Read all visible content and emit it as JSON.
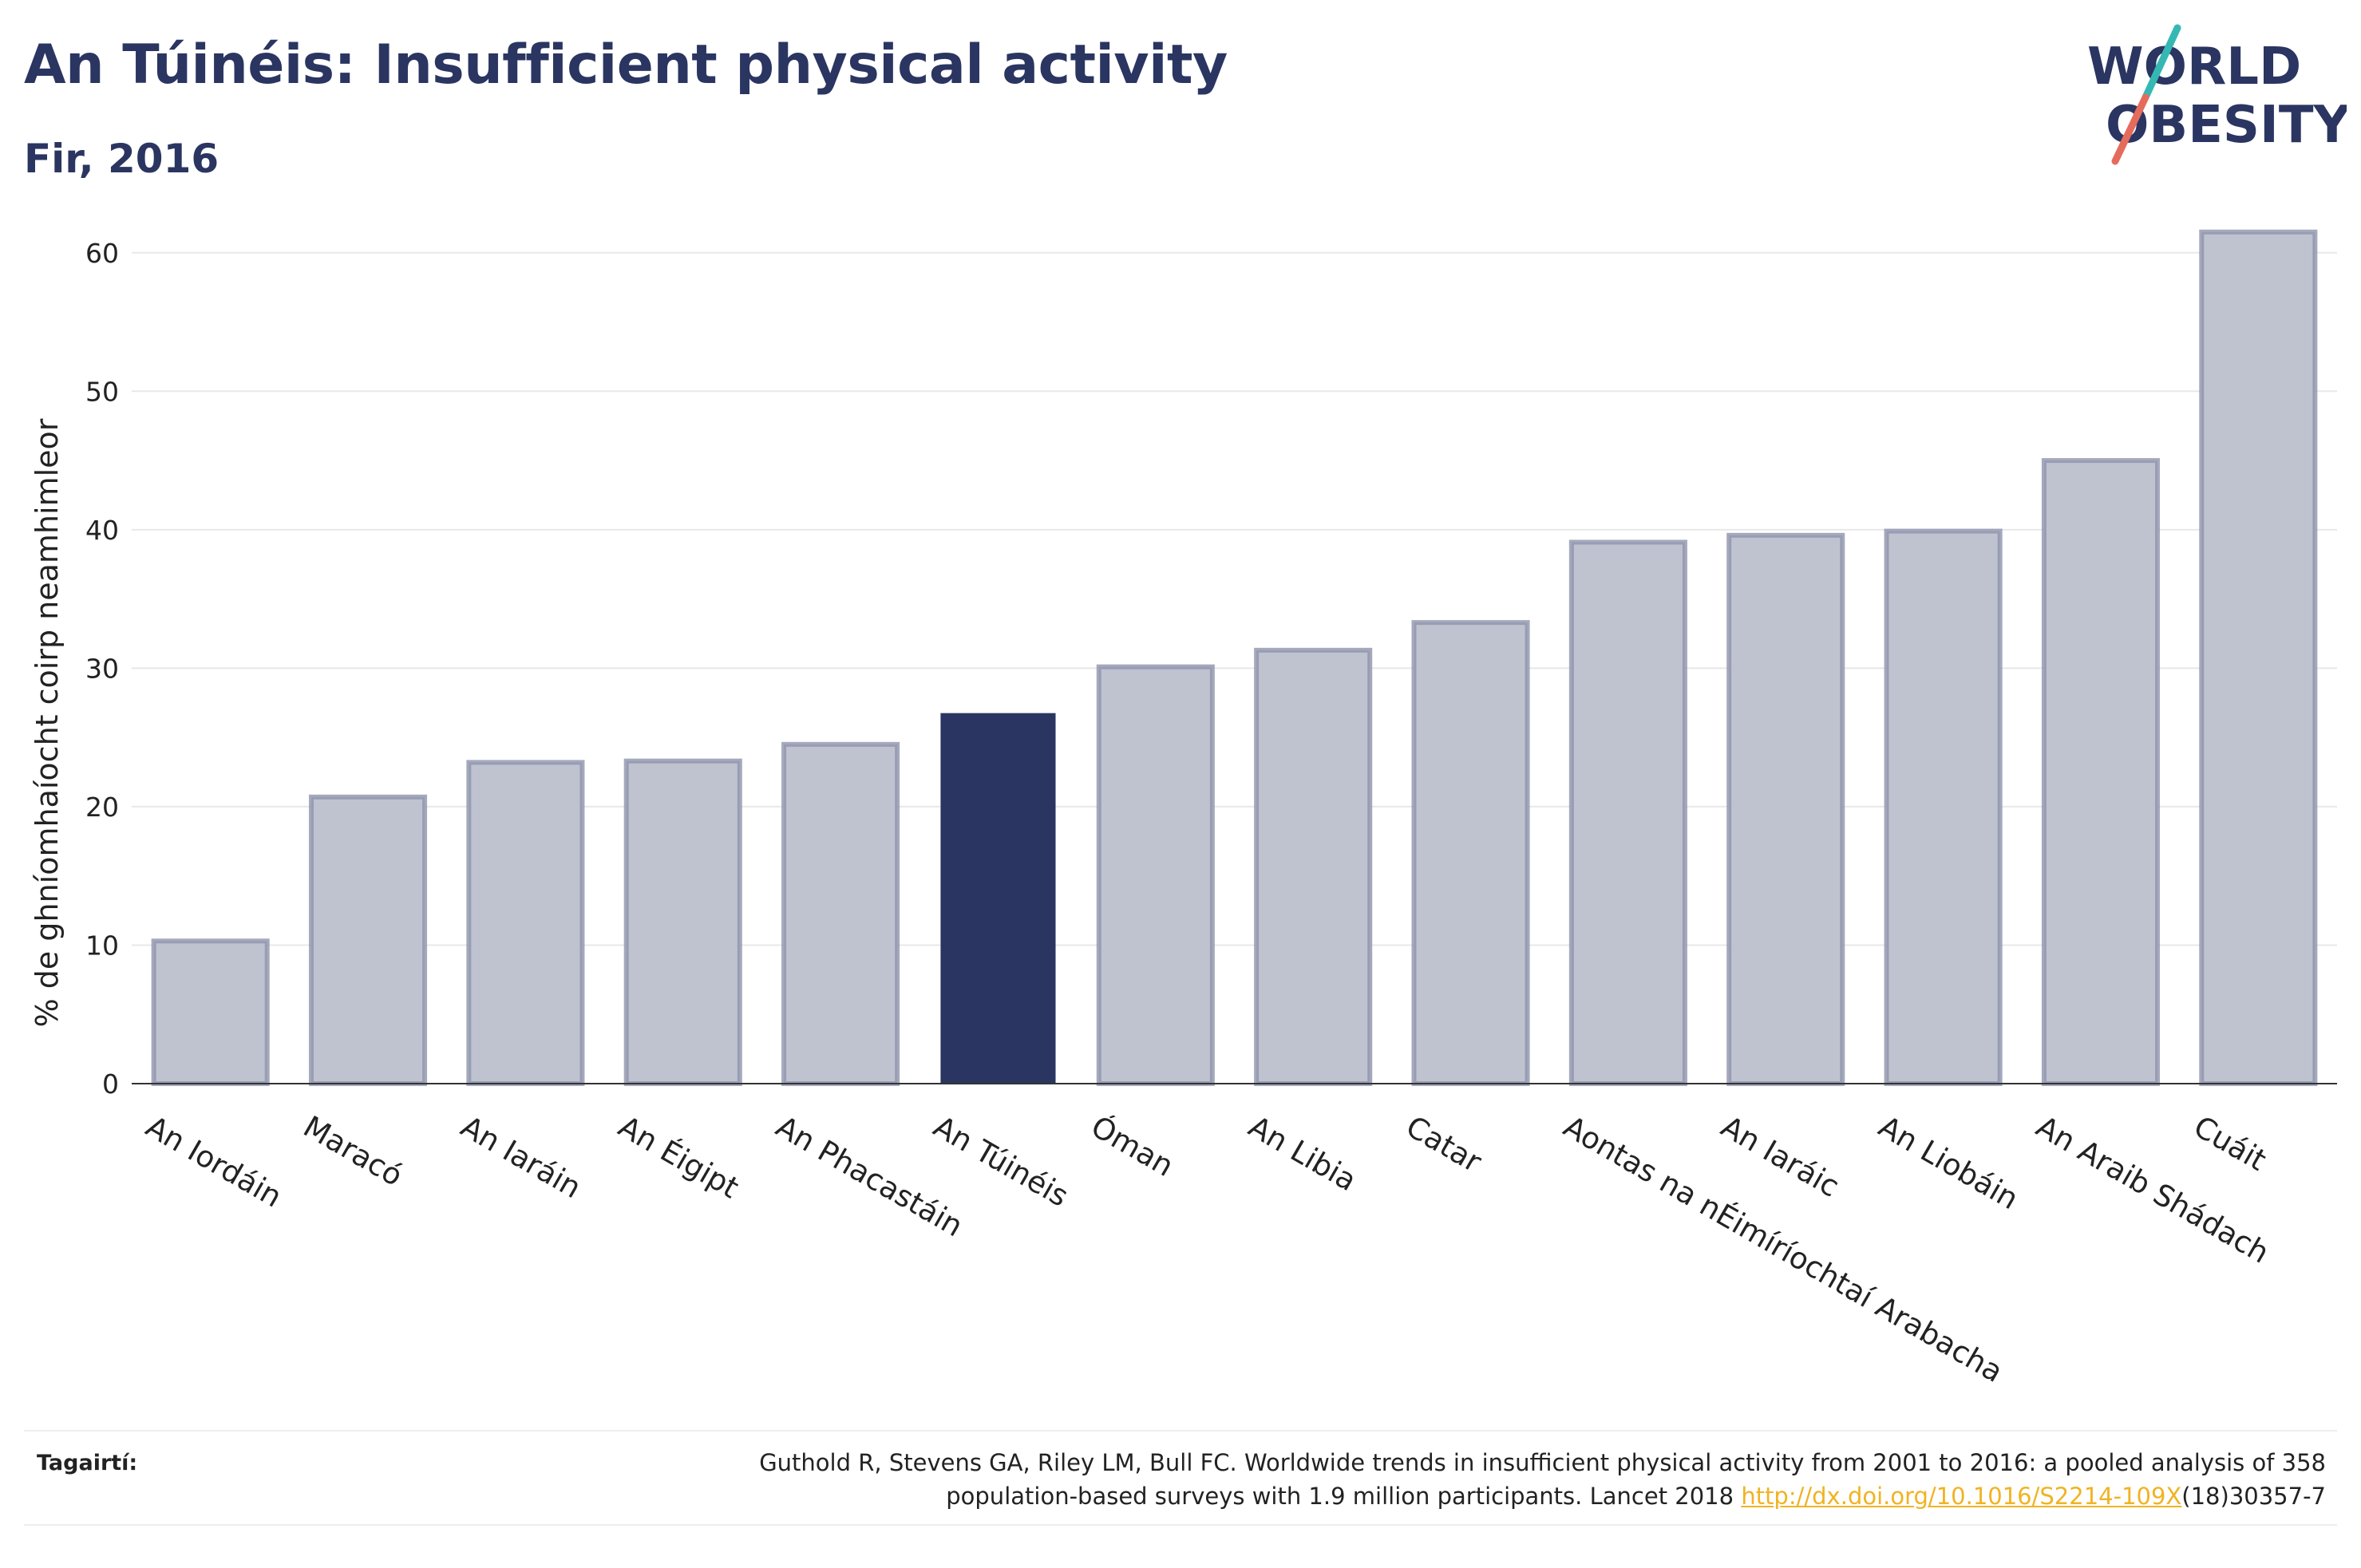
{
  "header": {
    "title": "An Túinéis: Insufficient physical activity",
    "subtitle": "Fir, 2016"
  },
  "logo": {
    "line1": "WORLD",
    "line2": "OBESITY"
  },
  "colors": {
    "highlight": "#2b3561",
    "bar_fill": "#bfc3d0",
    "bar_stroke": "#8e94ad",
    "teal": "#35b8b3",
    "coral": "#e56c5c"
  },
  "chart_data": {
    "type": "bar",
    "title": "An Túinéis: Insufficient physical activity",
    "subtitle": "Fir, 2016",
    "ylabel": "% de ghníomhaíocht coirp neamhimleor",
    "xlabel": "",
    "ylim": [
      0,
      65
    ],
    "yticks": [
      0,
      10,
      20,
      30,
      40,
      50,
      60
    ],
    "grid": true,
    "highlight_category": "An Túinéis",
    "categories": [
      "An Iordáin",
      "Maracó",
      "An Iaráin",
      "An Éigipt",
      "An Phacastáin",
      "An Túinéis",
      "Óman",
      "An Libia",
      "Catar",
      "Aontas na nÉimíríochtaí Arabacha",
      "An Iaráic",
      "An Liobáin",
      "An Araib Shádach",
      "Cuáit"
    ],
    "values": [
      10.3,
      20.7,
      23.2,
      23.3,
      24.5,
      26.7,
      30.1,
      31.3,
      33.3,
      39.1,
      39.6,
      39.9,
      45.0,
      61.5
    ]
  },
  "footer": {
    "ref_label": "Tagairtí:",
    "ref_line1": "Guthold R, Stevens GA, Riley LM, Bull FC. Worldwide trends in insufficient physical activity from 2001 to 2016: a pooled analysis of 358",
    "ref_line2_pre": "population-based surveys with 1.9 million participants. Lancet 2018 ",
    "ref_link": "http://dx.doi.org/10.1016/S2214-109X",
    "ref_line2_post": "(18)30357-7"
  }
}
